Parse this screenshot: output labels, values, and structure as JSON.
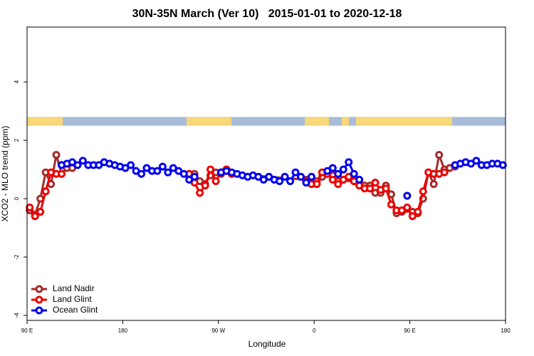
{
  "chart_data": {
    "type": "line",
    "title": "30N-35N March (Ver 10)   2015-01-01 to 2020-12-18",
    "x_label": "Longitude",
    "y_label": "XCO2 - MLO trend (ppm)",
    "xlim": [
      90,
      540
    ],
    "ylim": [
      -4.17,
      5.88
    ],
    "xticks": [
      {
        "value": 90,
        "label": "90 E"
      },
      180,
      {
        "value": 270,
        "label": "90 W"
      },
      {
        "value": 360,
        "label": "0"
      },
      {
        "value": 450,
        "label": "90 E"
      },
      {
        "value": 540,
        "label": "180"
      }
    ],
    "yticks": [
      -4,
      -2,
      0,
      2,
      4
    ],
    "legend": "bottom-left",
    "land_band": {
      "ylim": [
        2.5,
        2.8
      ],
      "ocean_color": "#a7bcd9",
      "land_color": "#f7d77a",
      "segments": [
        [
          90,
          123.5
        ],
        [
          240,
          282.2
        ],
        [
          351.2,
          374
        ],
        [
          386,
          392.7
        ],
        [
          399.4,
          489.8
        ]
      ]
    },
    "series": [
      {
        "name": "Land Nadir",
        "color": "#a52a2a",
        "x": [
          92.5,
          97.5,
          102.5,
          107.5,
          112.5,
          117.5,
          122.5,
          127.5,
          132.5,
          137.5,
          247.5,
          252.5,
          257.5,
          262.5,
          267.5,
          272.5,
          277.5,
          282.5,
          352.5,
          357.5,
          362.5,
          367.5,
          372.5,
          377.5,
          382.5,
          387.5,
          392.5,
          397.5,
          402.5,
          407.5,
          412.5,
          417.5,
          422.5,
          427.5,
          432.5,
          437.5,
          442.5,
          447.5,
          452.5,
          457.5,
          462.5,
          467.5,
          472.5,
          477.5,
          482.5,
          487.5,
          492.5
        ],
        "values": [
          -0.4,
          -0.55,
          0.0,
          0.9,
          0.5,
          1.5,
          0.85,
          1.05,
          1.05,
          null,
          0.85,
          0.6,
          0.5,
          0.8,
          0.9,
          0.85,
          1.0,
          0.85,
          0.65,
          0.55,
          0.6,
          0.75,
          0.85,
          0.8,
          0.6,
          0.65,
          0.7,
          0.6,
          0.55,
          0.45,
          0.45,
          0.2,
          0.2,
          0.45,
          0.15,
          -0.5,
          -0.45,
          -0.35,
          -0.45,
          -0.5,
          0.0,
          0.9,
          0.5,
          1.5,
          1.0,
          1.05,
          1.1
        ]
      },
      {
        "name": "Land Glint",
        "color": "#ee0000",
        "x": [
          92.5,
          97.5,
          102.5,
          107.5,
          112.5,
          117.5,
          122.5,
          127.5,
          242.5,
          247.5,
          252.5,
          257.5,
          262.5,
          267.5,
          272.5,
          277.5,
          282.5,
          287.5,
          352.5,
          357.5,
          362.5,
          367.5,
          372.5,
          377.5,
          382.5,
          387.5,
          392.5,
          397.5,
          402.5,
          407.5,
          412.5,
          417.5,
          422.5,
          427.5,
          432.5,
          437.5,
          442.5,
          447.5,
          452.5,
          457.5,
          462.5,
          467.5,
          472.5,
          477.5,
          482.5
        ],
        "values": [
          -0.3,
          -0.6,
          -0.45,
          0.25,
          0.9,
          0.85,
          0.85,
          null,
          0.85,
          0.55,
          0.2,
          0.45,
          1.0,
          0.6,
          0.9,
          1.0,
          0.85,
          null,
          0.6,
          0.5,
          0.5,
          0.9,
          0.85,
          0.65,
          0.5,
          0.65,
          0.75,
          0.6,
          0.45,
          0.35,
          0.35,
          0.55,
          0.3,
          0.35,
          -0.2,
          -0.4,
          -0.4,
          -0.3,
          -0.6,
          -0.45,
          0.25,
          0.9,
          0.85,
          0.85,
          0.9
        ]
      },
      {
        "name": "Ocean Glint",
        "color": "#0000ee",
        "x": [
          122.5,
          127.5,
          132.5,
          137.5,
          142.5,
          147.5,
          152.5,
          157.5,
          162.5,
          167.5,
          172.5,
          177.5,
          182.5,
          187.5,
          192.5,
          197.5,
          202.5,
          207.5,
          212.5,
          217.5,
          222.5,
          227.5,
          232.5,
          237.5,
          242.5,
          247.5,
          252.5,
          272.5,
          277.5,
          282.5,
          287.5,
          292.5,
          297.5,
          302.5,
          307.5,
          312.5,
          317.5,
          322.5,
          327.5,
          332.5,
          337.5,
          342.5,
          347.5,
          352.5,
          357.5,
          362.5,
          372.5,
          377.5,
          382.5,
          387.5,
          392.5,
          397.5,
          402.5,
          407.5,
          447.5,
          452.5,
          492.5,
          497.5,
          502.5,
          507.5,
          512.5,
          517.5,
          522.5,
          527.5,
          532.5,
          537.5
        ],
        "values": [
          1.15,
          1.2,
          1.25,
          1.15,
          1.3,
          1.15,
          1.15,
          1.15,
          1.25,
          1.2,
          1.15,
          1.1,
          1.05,
          1.15,
          0.95,
          0.85,
          1.05,
          0.95,
          0.95,
          1.1,
          0.9,
          1.05,
          0.95,
          0.85,
          0.65,
          0.75,
          null,
          0.9,
          0.95,
          0.9,
          0.85,
          0.8,
          0.75,
          0.8,
          0.75,
          0.65,
          0.75,
          0.65,
          0.6,
          0.75,
          0.6,
          0.9,
          0.75,
          0.55,
          0.75,
          null,
          0.95,
          1.05,
          0.85,
          1.0,
          1.25,
          0.85,
          0.65,
          null,
          0.1,
          null,
          1.15,
          1.2,
          1.25,
          1.2,
          1.3,
          1.15,
          1.15,
          1.2,
          1.2,
          1.15
        ]
      }
    ]
  }
}
